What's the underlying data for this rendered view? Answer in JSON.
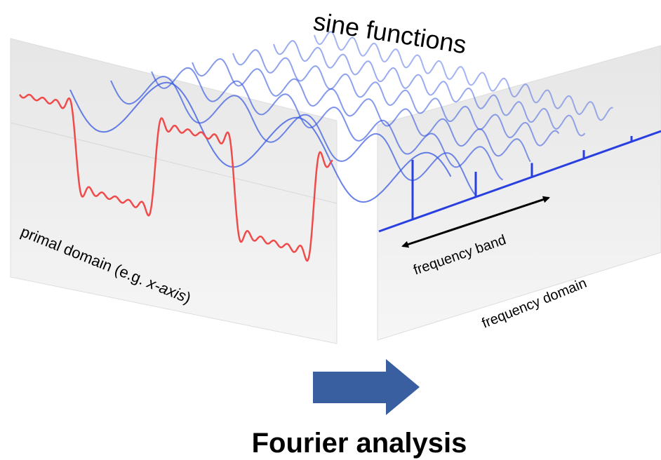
{
  "title": "sine functions",
  "primal_label": [
    "primal domain (e.g. ",
    "x-axis",
    ")"
  ],
  "band_label": "frequency band",
  "frequency_label": "frequency domain",
  "caption": "Fourier analysis"
}
